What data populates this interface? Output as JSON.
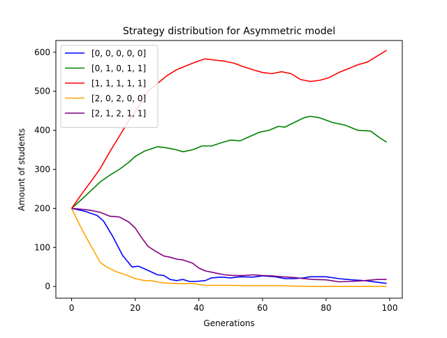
{
  "chart_data": {
    "type": "line",
    "title": "Strategy distribution for Asymmetric model",
    "xlabel": "Generations",
    "ylabel": "Amount of students",
    "xlim": [
      -4.95,
      103.95
    ],
    "ylim": [
      -30,
      630
    ],
    "xticks": [
      0,
      20,
      40,
      60,
      80,
      100
    ],
    "yticks": [
      0,
      100,
      200,
      300,
      400,
      500,
      600
    ],
    "grid": false,
    "legend_position": "top-left",
    "series": [
      {
        "name": "[0, 0, 0, 0, 0]",
        "color": "#0000ff",
        "x": [
          0,
          4,
          8,
          10,
          13,
          16,
          19,
          21,
          23,
          27,
          29,
          31,
          33,
          35,
          37,
          39,
          42,
          44,
          47,
          50,
          53,
          57,
          60,
          64,
          67,
          70,
          73,
          75,
          77,
          80,
          84,
          88,
          92,
          96,
          99
        ],
        "y": [
          200,
          193,
          182,
          168,
          127,
          80,
          50,
          52,
          45,
          30,
          28,
          18,
          15,
          18,
          13,
          13,
          15,
          22,
          24,
          22,
          25,
          24,
          27,
          25,
          20,
          20,
          22,
          25,
          25,
          25,
          20,
          17,
          15,
          11,
          8
        ]
      },
      {
        "name": "[0, 1, 0, 1, 1]",
        "color": "#008000",
        "x": [
          0,
          3,
          6,
          9,
          12,
          15,
          18,
          20,
          23,
          27,
          30,
          33,
          35,
          38,
          41,
          44,
          47,
          50,
          53,
          56,
          59,
          62,
          65,
          67,
          70,
          73,
          75,
          78,
          82,
          86,
          90,
          94,
          97,
          99
        ],
        "y": [
          200,
          222,
          245,
          268,
          285,
          300,
          318,
          333,
          347,
          358,
          355,
          350,
          345,
          350,
          360,
          360,
          368,
          375,
          373,
          384,
          395,
          400,
          410,
          408,
          420,
          432,
          436,
          432,
          420,
          413,
          400,
          398,
          380,
          370
        ]
      },
      {
        "name": "[1, 1, 1, 1, 1]",
        "color": "#ff0000",
        "x": [
          0,
          3,
          6,
          9,
          12,
          15,
          18,
          21,
          24,
          27,
          30,
          33,
          36,
          39,
          42,
          45,
          48,
          51,
          54,
          57,
          60,
          63,
          66,
          69,
          72,
          75,
          78,
          81,
          84,
          87,
          90,
          93,
          96,
          99
        ],
        "y": [
          200,
          235,
          268,
          302,
          345,
          385,
          425,
          460,
          500,
          520,
          540,
          555,
          565,
          575,
          583,
          580,
          577,
          572,
          563,
          555,
          548,
          545,
          550,
          545,
          530,
          525,
          528,
          535,
          548,
          558,
          568,
          575,
          590,
          605
        ]
      },
      {
        "name": "[2, 0, 2, 0, 0]",
        "color": "#ffa500",
        "x": [
          0,
          3,
          6,
          9,
          11,
          14,
          17,
          20,
          23,
          25,
          28,
          31,
          35,
          38,
          40,
          42,
          45,
          50,
          55,
          60,
          65,
          70,
          75,
          80,
          85,
          90,
          95,
          99
        ],
        "y": [
          200,
          150,
          105,
          62,
          50,
          38,
          30,
          20,
          15,
          15,
          10,
          8,
          7,
          8,
          5,
          3,
          3,
          3,
          2,
          2,
          2,
          1,
          0,
          0,
          0,
          0,
          0,
          0
        ]
      },
      {
        "name": "[2, 1, 2, 1, 1]",
        "color": "#800080",
        "x": [
          0,
          3,
          6,
          9,
          12,
          15,
          18,
          20,
          22,
          24,
          26,
          29,
          31,
          33,
          35,
          38,
          40,
          42,
          45,
          48,
          51,
          54,
          57,
          60,
          63,
          66,
          70,
          73,
          76,
          80,
          84,
          88,
          92,
          96,
          99
        ],
        "y": [
          200,
          198,
          195,
          190,
          180,
          178,
          165,
          150,
          125,
          103,
          92,
          78,
          75,
          70,
          68,
          60,
          47,
          40,
          35,
          30,
          28,
          28,
          30,
          28,
          27,
          25,
          23,
          20,
          18,
          17,
          12,
          13,
          15,
          18,
          18
        ]
      }
    ]
  }
}
